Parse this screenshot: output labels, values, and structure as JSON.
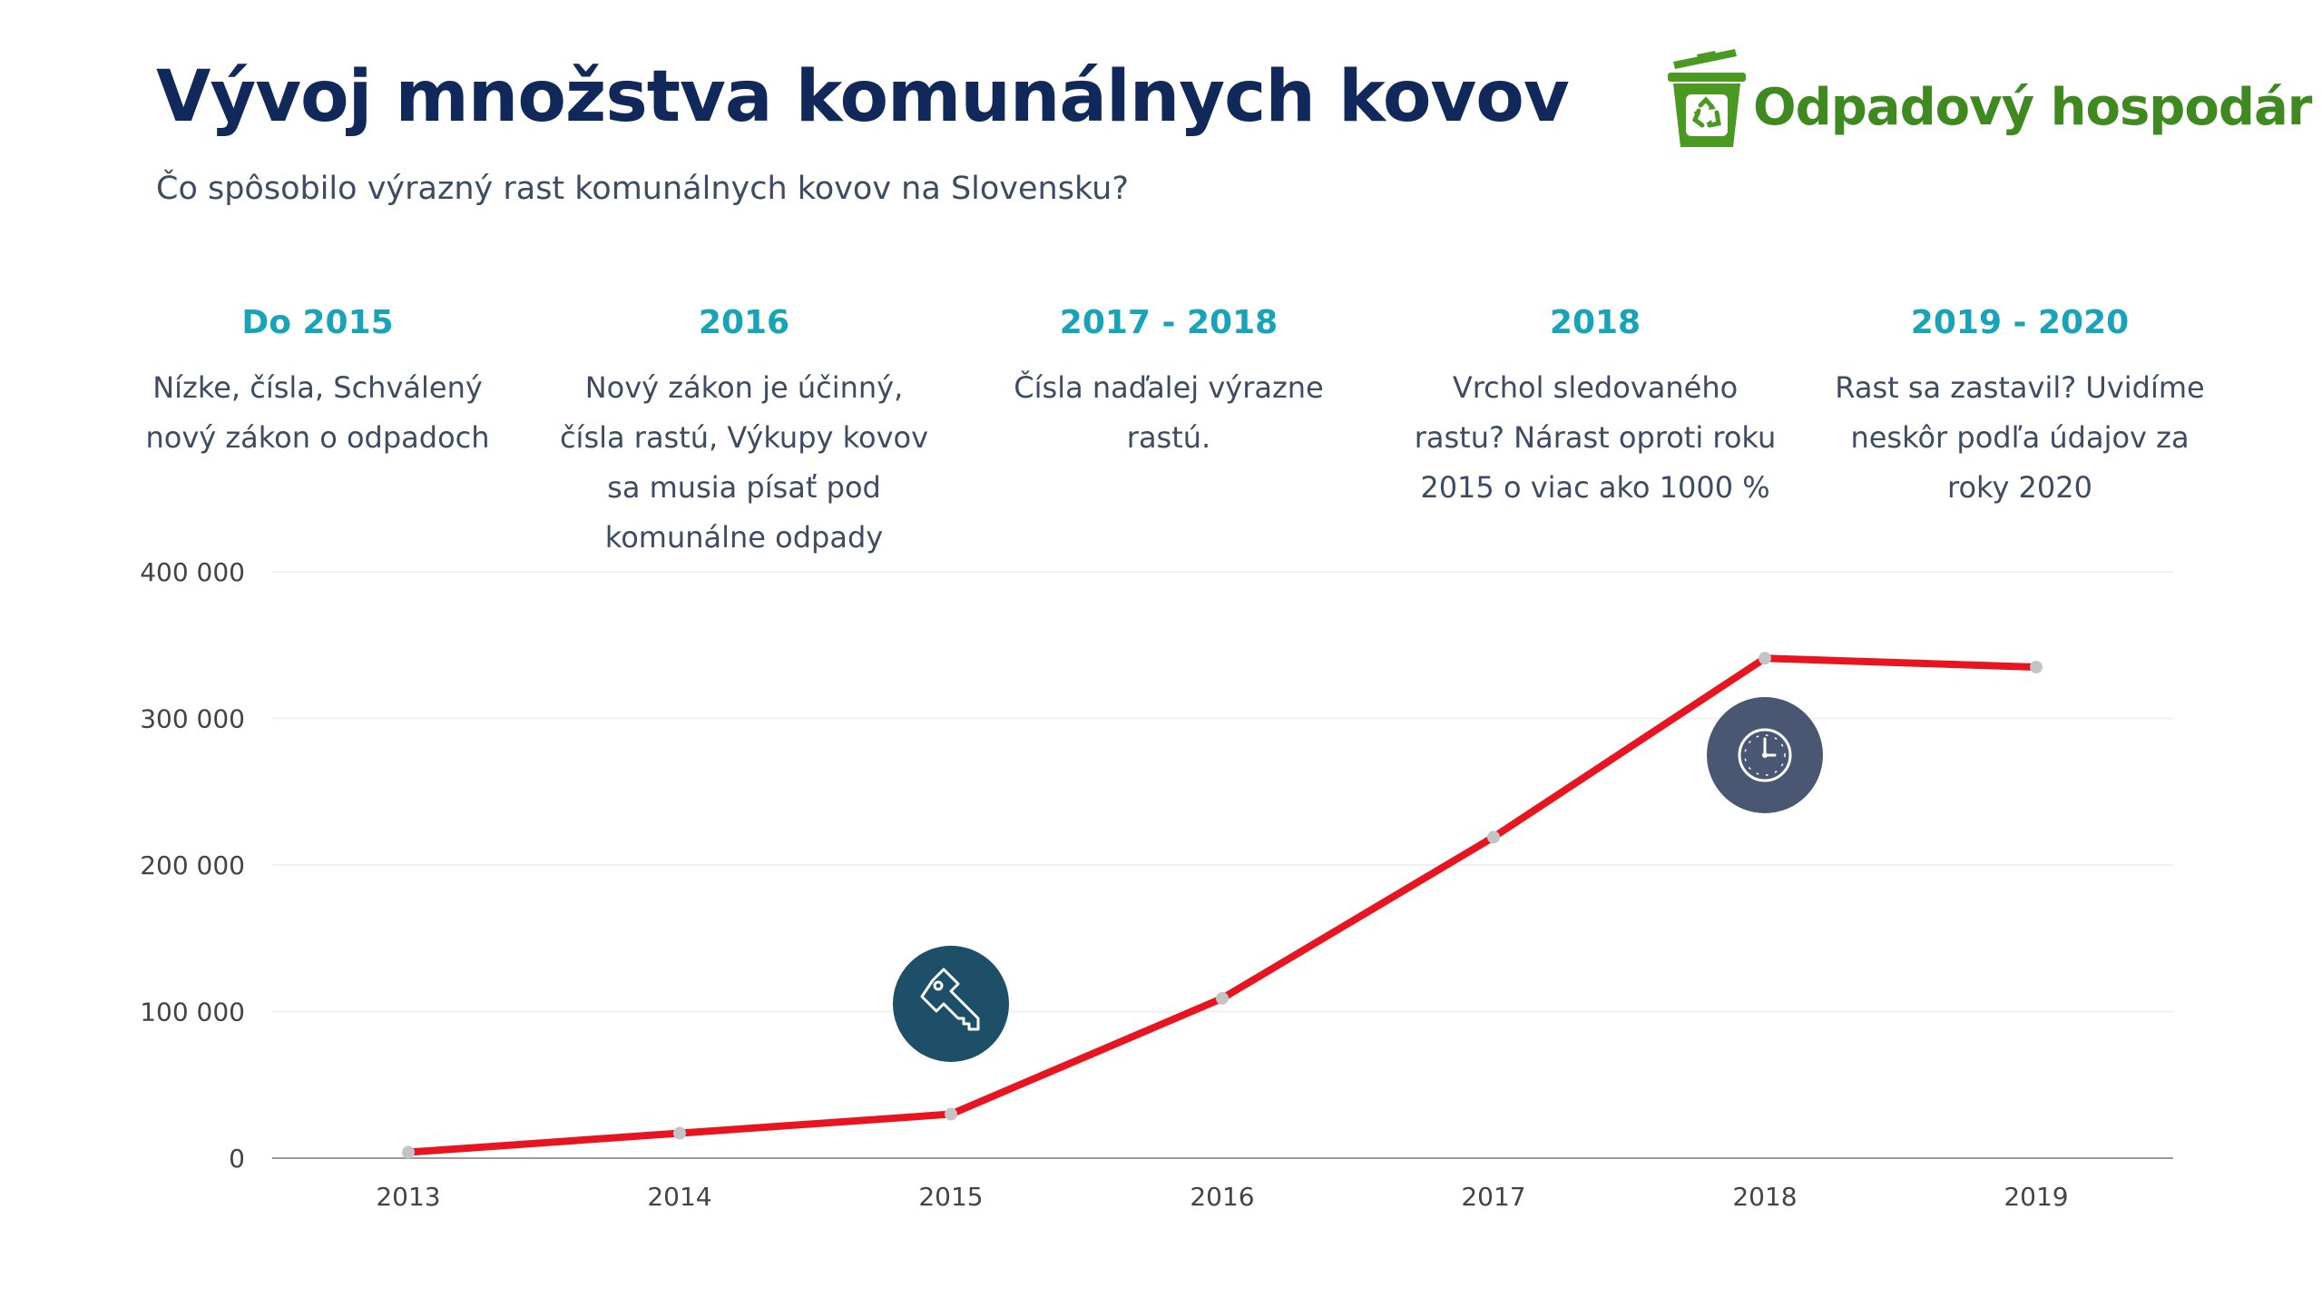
{
  "header": {
    "title": "Vývoj množstva komunálnych kovov",
    "subtitle": "Čo spôsobilo výrazný rast komunálnych kovov na Slovensku?"
  },
  "logo": {
    "text": "Odpadový hospodár",
    "icon": "recycle-bin-icon",
    "color": "#4a9a22"
  },
  "phases": [
    {
      "title": "Do 2015",
      "text": "Nízke, čísla, Schválený nový zákon o odpadoch"
    },
    {
      "title": "2016",
      "text": "Nový zákon je účinný, čísla rastú, Výkupy kovov sa musia písať pod komunálne odpady"
    },
    {
      "title": "2017 - 2018",
      "text": "Čísla naďalej výrazne rastú."
    },
    {
      "title": "2018",
      "text": "Vrchol sledovaného rastu? Nárast oproti roku 2015 o viac ako 1000 %"
    },
    {
      "title": "2019 - 2020",
      "text": "Rast sa zastavil? Uvidíme neskôr podľa údajov za roky 2020"
    }
  ],
  "markers": [
    {
      "icon": "key-icon",
      "color": "#1d4f68",
      "x": 2015,
      "y": 105000
    },
    {
      "icon": "clock-icon",
      "color": "#4a5773",
      "x": 2018,
      "y": 275000
    }
  ],
  "colors": {
    "line": "#e8141f",
    "point": "#c4c4c4",
    "title": "#10285a",
    "accent": "#17a3b8",
    "text": "#3d4b63"
  },
  "chart_data": {
    "type": "line",
    "categories": [
      "2013",
      "2014",
      "2015",
      "2016",
      "2017",
      "2018",
      "2019"
    ],
    "series": [
      {
        "values": [
          4000,
          17000,
          30000,
          109000,
          219000,
          341000,
          335000
        ]
      }
    ],
    "yticks": [
      0,
      100000,
      200000,
      300000,
      400000
    ],
    "ytick_labels": [
      "0",
      "100 000",
      "200 000",
      "300 000",
      "400 000"
    ],
    "ylim": [
      0,
      400000
    ],
    "xlabel": "",
    "ylabel": "",
    "grid": true,
    "legend": "none"
  }
}
